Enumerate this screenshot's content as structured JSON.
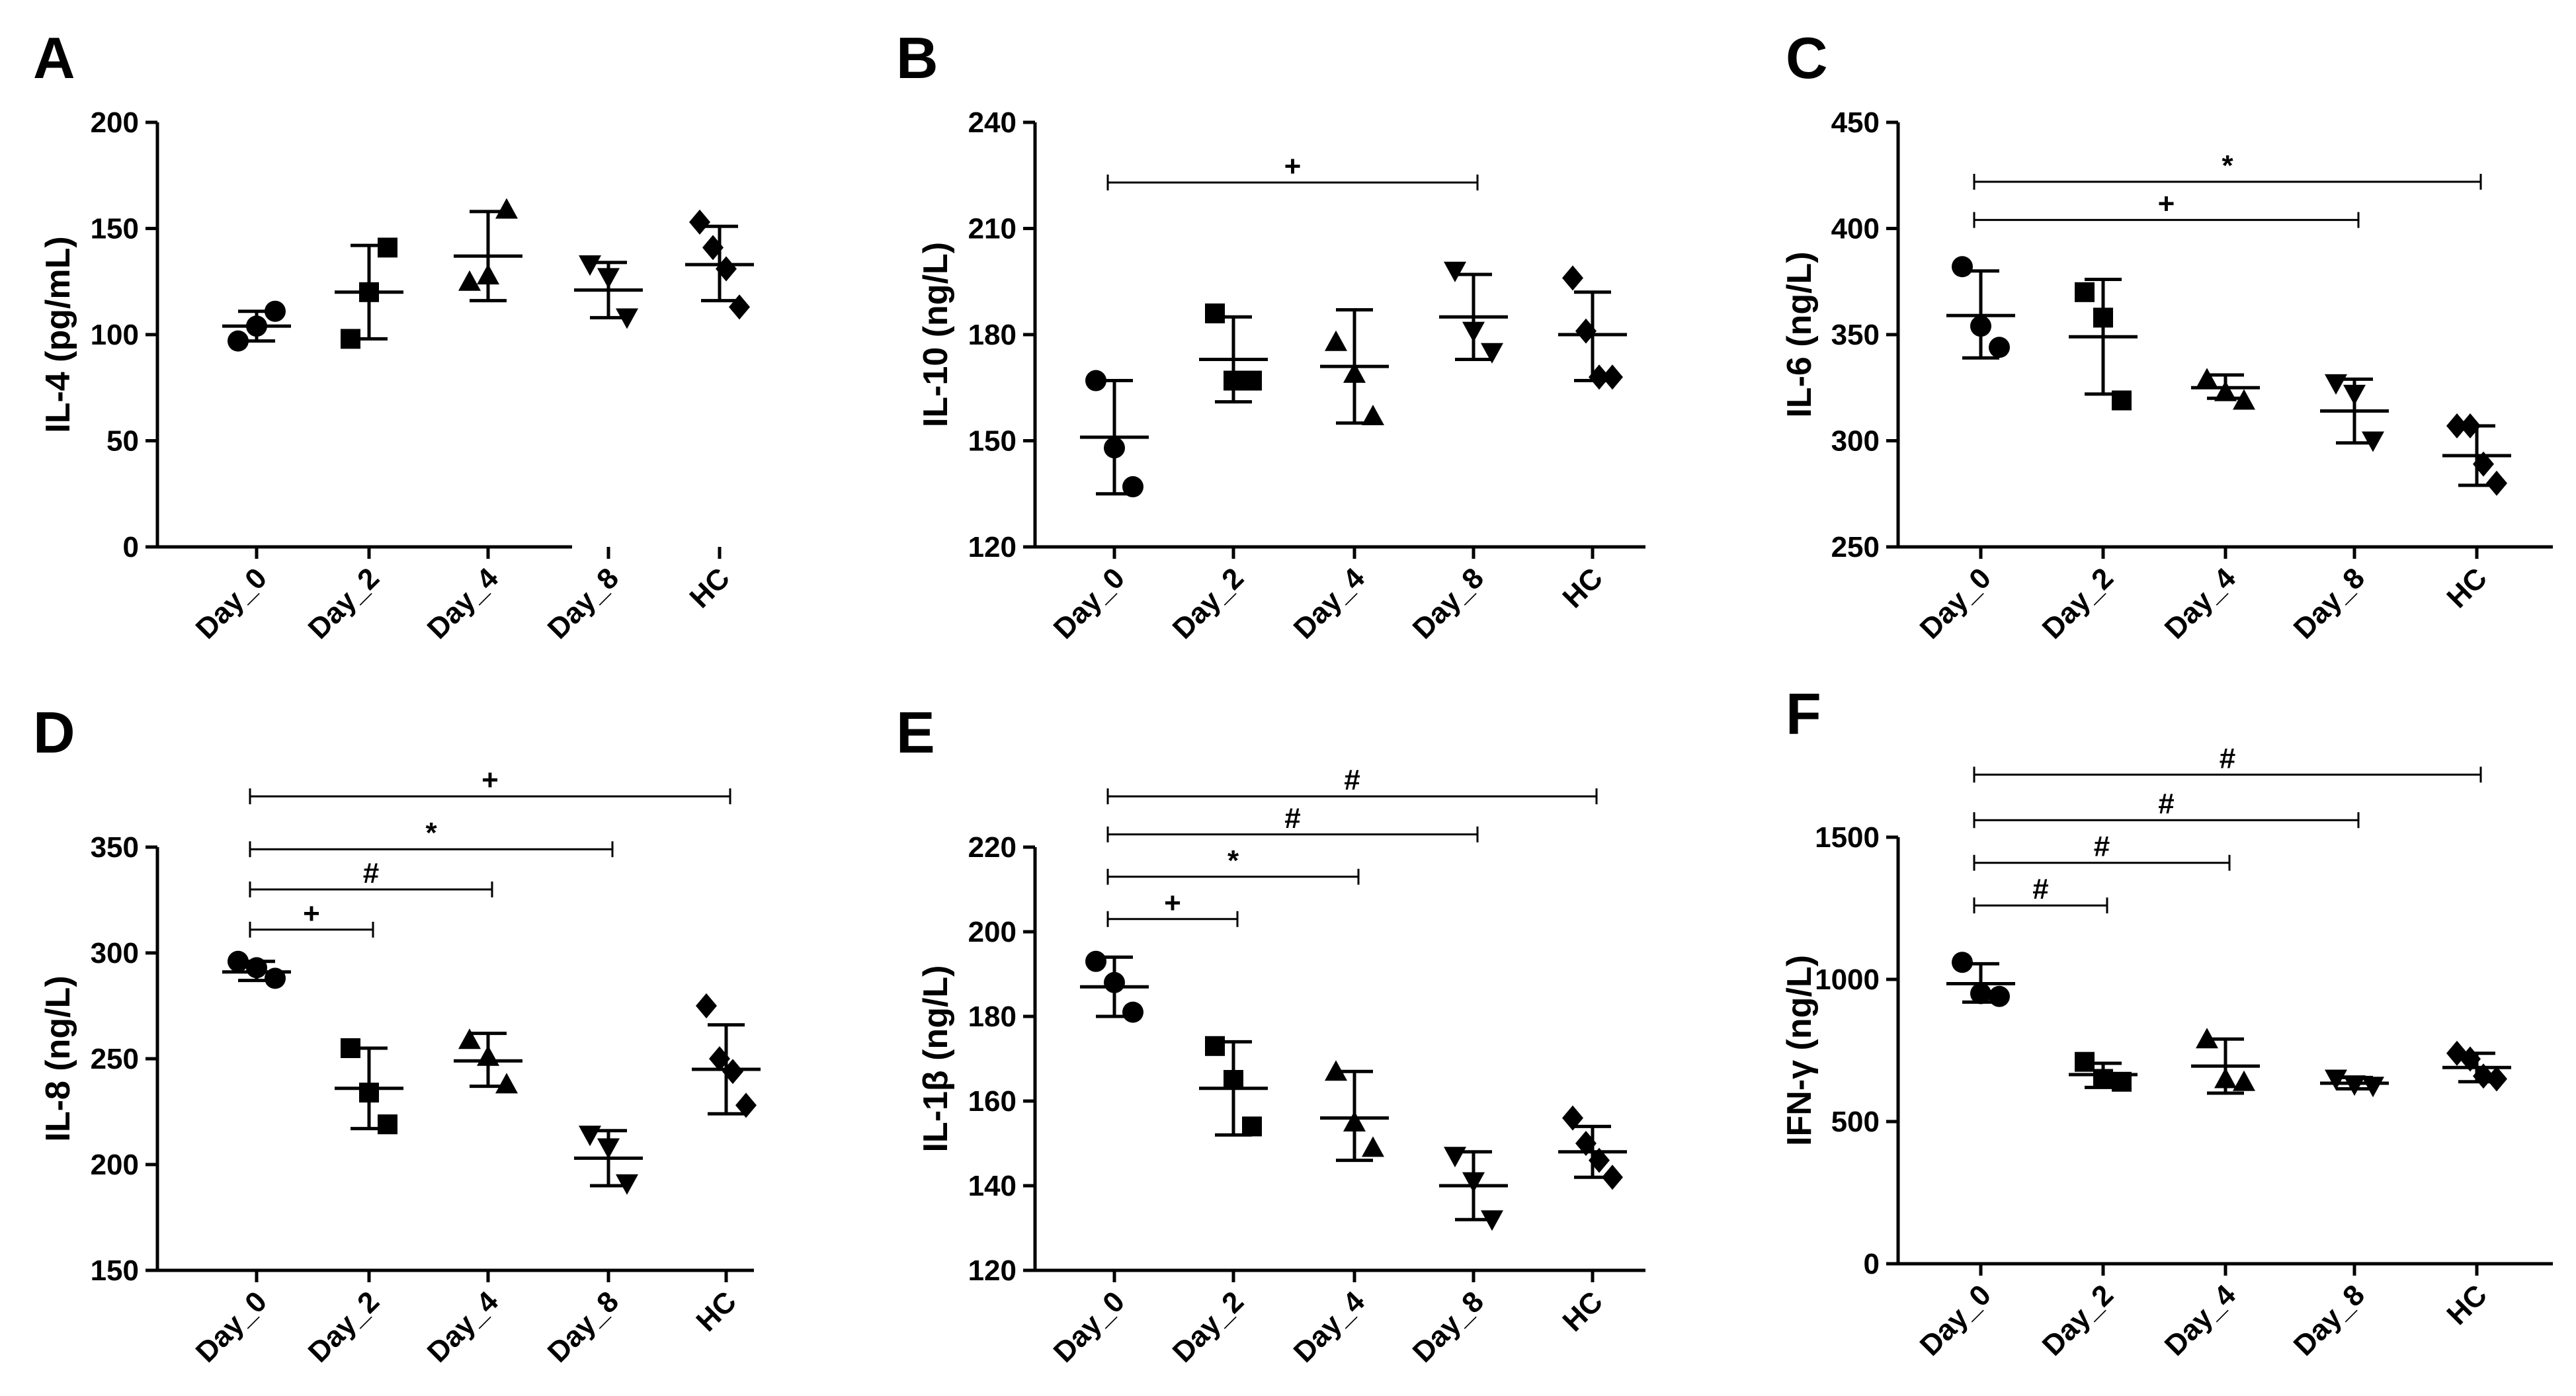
{
  "figure": {
    "panels": [
      {
        "letter": "A",
        "ylabel": "IL-4 (pg/mL)"
      },
      {
        "letter": "B",
        "ylabel": "IL-10 (ng/L)"
      },
      {
        "letter": "C",
        "ylabel": "IL-6 (ng/L)"
      },
      {
        "letter": "D",
        "ylabel": "IL-8 (ng/L)"
      },
      {
        "letter": "E",
        "ylabel": "IL-1β (ng/L)"
      },
      {
        "letter": "F",
        "ylabel": "IFN-γ (ng/L)"
      }
    ]
  },
  "chart_data": [
    {
      "type": "scatter",
      "panel": "A",
      "title": "",
      "xlabel": "",
      "ylabel": "IL-4 (pg/mL)",
      "categories": [
        "Day_0",
        "Day_2",
        "Day_4",
        "Day_8",
        "HC"
      ],
      "ylim": [
        0,
        200
      ],
      "yticks": [
        0,
        50,
        100,
        150,
        200
      ],
      "series": [
        {
          "name": "Day_0",
          "marker": "circle",
          "points": [
            97,
            104,
            111
          ],
          "mean": 104,
          "sd_low": 97,
          "sd_high": 111
        },
        {
          "name": "Day_2",
          "marker": "square",
          "points": [
            98,
            120,
            141
          ],
          "mean": 120,
          "sd_low": 98,
          "sd_high": 142
        },
        {
          "name": "Day_4",
          "marker": "triangle-up",
          "points": [
            125,
            128,
            159
          ],
          "mean": 137,
          "sd_low": 116,
          "sd_high": 158
        },
        {
          "name": "Day_8",
          "marker": "triangle-down",
          "points": [
            133,
            127,
            108
          ],
          "mean": 121,
          "sd_low": 108,
          "sd_high": 134
        },
        {
          "name": "HC",
          "marker": "diamond",
          "points": [
            153,
            141,
            131,
            113
          ],
          "mean": 133,
          "sd_low": 116,
          "sd_high": 151
        }
      ],
      "comparisons": []
    },
    {
      "type": "scatter",
      "panel": "B",
      "title": "",
      "xlabel": "",
      "ylabel": "IL-10 (ng/L)",
      "categories": [
        "Day_0",
        "Day_2",
        "Day_4",
        "Day_8",
        "HC"
      ],
      "ylim": [
        120,
        240
      ],
      "yticks": [
        120,
        150,
        180,
        210,
        240
      ],
      "series": [
        {
          "name": "Day_0",
          "marker": "circle",
          "points": [
            167,
            148,
            137
          ],
          "mean": 151,
          "sd_low": 135,
          "sd_high": 167
        },
        {
          "name": "Day_2",
          "marker": "square",
          "points": [
            186,
            167,
            167
          ],
          "mean": 173,
          "sd_low": 161,
          "sd_high": 185
        },
        {
          "name": "Day_4",
          "marker": "triangle-up",
          "points": [
            178,
            169,
            157
          ],
          "mean": 171,
          "sd_low": 155,
          "sd_high": 187
        },
        {
          "name": "Day_8",
          "marker": "triangle-down",
          "points": [
            198,
            181,
            175
          ],
          "mean": 185,
          "sd_low": 173,
          "sd_high": 197
        },
        {
          "name": "HC",
          "marker": "diamond",
          "points": [
            196,
            181,
            168,
            168
          ],
          "mean": 180,
          "sd_low": 167,
          "sd_high": 192
        }
      ],
      "comparisons": [
        {
          "from": "Day_0",
          "to": "Day_8",
          "y": 223,
          "label": "+"
        }
      ]
    },
    {
      "type": "scatter",
      "panel": "C",
      "title": "",
      "xlabel": "",
      "ylabel": "IL-6 (ng/L)",
      "categories": [
        "Day_0",
        "Day_2",
        "Day_4",
        "Day_8",
        "HC"
      ],
      "ylim": [
        250,
        450
      ],
      "yticks": [
        250,
        300,
        350,
        400,
        450
      ],
      "series": [
        {
          "name": "Day_0",
          "marker": "circle",
          "points": [
            382,
            354,
            344
          ],
          "mean": 359,
          "sd_low": 339,
          "sd_high": 380
        },
        {
          "name": "Day_2",
          "marker": "square",
          "points": [
            370,
            358,
            319
          ],
          "mean": 349,
          "sd_low": 322,
          "sd_high": 376
        },
        {
          "name": "Day_4",
          "marker": "triangle-up",
          "points": [
            329,
            323,
            319
          ],
          "mean": 325,
          "sd_low": 320,
          "sd_high": 331
        },
        {
          "name": "Day_8",
          "marker": "triangle-down",
          "points": [
            327,
            322,
            300
          ],
          "mean": 314,
          "sd_low": 299,
          "sd_high": 329
        },
        {
          "name": "HC",
          "marker": "diamond",
          "points": [
            307,
            307,
            289,
            280
          ],
          "mean": 293,
          "sd_low": 279,
          "sd_high": 307
        }
      ],
      "comparisons": [
        {
          "from": "Day_0",
          "to": "Day_8",
          "y": 404,
          "label": "+"
        },
        {
          "from": "Day_0",
          "to": "HC",
          "y": 422,
          "label": "*"
        }
      ]
    },
    {
      "type": "scatter",
      "panel": "D",
      "title": "",
      "xlabel": "",
      "ylabel": "IL-8 (ng/L)",
      "categories": [
        "Day_0",
        "Day_2",
        "Day_4",
        "Day_8",
        "HC"
      ],
      "ylim": [
        150,
        350
      ],
      "yticks": [
        150,
        200,
        250,
        300,
        350
      ],
      "series": [
        {
          "name": "Day_0",
          "marker": "circle",
          "points": [
            296,
            293,
            288
          ],
          "mean": 291,
          "sd_low": 287,
          "sd_high": 296
        },
        {
          "name": "Day_2",
          "marker": "square",
          "points": [
            255,
            234,
            219
          ],
          "mean": 236,
          "sd_low": 217,
          "sd_high": 255
        },
        {
          "name": "Day_4",
          "marker": "triangle-up",
          "points": [
            259,
            251,
            238
          ],
          "mean": 249,
          "sd_low": 237,
          "sd_high": 262
        },
        {
          "name": "Day_8",
          "marker": "triangle-down",
          "points": [
            214,
            208,
            191
          ],
          "mean": 203,
          "sd_low": 190,
          "sd_high": 216
        },
        {
          "name": "HC",
          "marker": "diamond",
          "points": [
            275,
            250,
            244,
            228
          ],
          "mean": 245,
          "sd_low": 224,
          "sd_high": 266
        }
      ],
      "comparisons": [
        {
          "from": "Day_0",
          "to": "Day_2",
          "y": 311,
          "label": "+"
        },
        {
          "from": "Day_0",
          "to": "Day_4",
          "y": 330,
          "label": "#"
        },
        {
          "from": "Day_0",
          "to": "Day_8",
          "y": 349,
          "label": "*"
        },
        {
          "from": "Day_0",
          "to": "HC",
          "y": 374,
          "label": "+"
        }
      ]
    },
    {
      "type": "scatter",
      "panel": "E",
      "title": "",
      "xlabel": "",
      "ylabel": "IL-1β (ng/L)",
      "categories": [
        "Day_0",
        "Day_2",
        "Day_4",
        "Day_8",
        "HC"
      ],
      "ylim": [
        120,
        220
      ],
      "yticks": [
        120,
        140,
        160,
        180,
        200,
        220
      ],
      "series": [
        {
          "name": "Day_0",
          "marker": "circle",
          "points": [
            193,
            188,
            181
          ],
          "mean": 187,
          "sd_low": 180,
          "sd_high": 194
        },
        {
          "name": "Day_2",
          "marker": "square",
          "points": [
            173,
            165,
            154
          ],
          "mean": 163,
          "sd_low": 152,
          "sd_high": 174
        },
        {
          "name": "Day_4",
          "marker": "triangle-up",
          "points": [
            167,
            155,
            149
          ],
          "mean": 156,
          "sd_low": 146,
          "sd_high": 167
        },
        {
          "name": "Day_8",
          "marker": "triangle-down",
          "points": [
            147,
            141,
            132
          ],
          "mean": 140,
          "sd_low": 132,
          "sd_high": 148
        },
        {
          "name": "HC",
          "marker": "diamond",
          "points": [
            156,
            150,
            146,
            142
          ],
          "mean": 148,
          "sd_low": 142,
          "sd_high": 154
        }
      ],
      "comparisons": [
        {
          "from": "Day_0",
          "to": "Day_2",
          "y": 203,
          "label": "+"
        },
        {
          "from": "Day_0",
          "to": "Day_4",
          "y": 213,
          "label": "*"
        },
        {
          "from": "Day_0",
          "to": "Day_8",
          "y": 223,
          "label": "#"
        },
        {
          "from": "Day_0",
          "to": "HC",
          "y": 232,
          "label": "#"
        }
      ]
    },
    {
      "type": "scatter",
      "panel": "F",
      "title": "",
      "xlabel": "",
      "ylabel": "IFN-γ (ng/L)",
      "categories": [
        "Day_0",
        "Day_2",
        "Day_4",
        "Day_8",
        "HC"
      ],
      "ylim": [
        0,
        1500
      ],
      "yticks": [
        0,
        500,
        1000,
        1500
      ],
      "series": [
        {
          "name": "Day_0",
          "marker": "circle",
          "points": [
            1060,
            950,
            940
          ],
          "mean": 985,
          "sd_low": 920,
          "sd_high": 1055
        },
        {
          "name": "Day_2",
          "marker": "square",
          "points": [
            710,
            650,
            640
          ],
          "mean": 665,
          "sd_low": 620,
          "sd_high": 705
        },
        {
          "name": "Day_4",
          "marker": "triangle-up",
          "points": [
            790,
            650,
            640
          ],
          "mean": 695,
          "sd_low": 600,
          "sd_high": 790
        },
        {
          "name": "Day_8",
          "marker": "triangle-down",
          "points": [
            650,
            630,
            625
          ],
          "mean": 635,
          "sd_low": 615,
          "sd_high": 655
        },
        {
          "name": "HC",
          "marker": "diamond",
          "points": [
            740,
            720,
            660,
            650
          ],
          "mean": 690,
          "sd_low": 640,
          "sd_high": 740
        }
      ],
      "comparisons": [
        {
          "from": "Day_0",
          "to": "Day_2",
          "y": 1260,
          "label": "#"
        },
        {
          "from": "Day_0",
          "to": "Day_4",
          "y": 1410,
          "label": "#"
        },
        {
          "from": "Day_0",
          "to": "Day_8",
          "y": 1560,
          "label": "#"
        },
        {
          "from": "Day_0",
          "to": "HC",
          "y": 1720,
          "label": "#"
        }
      ]
    }
  ]
}
